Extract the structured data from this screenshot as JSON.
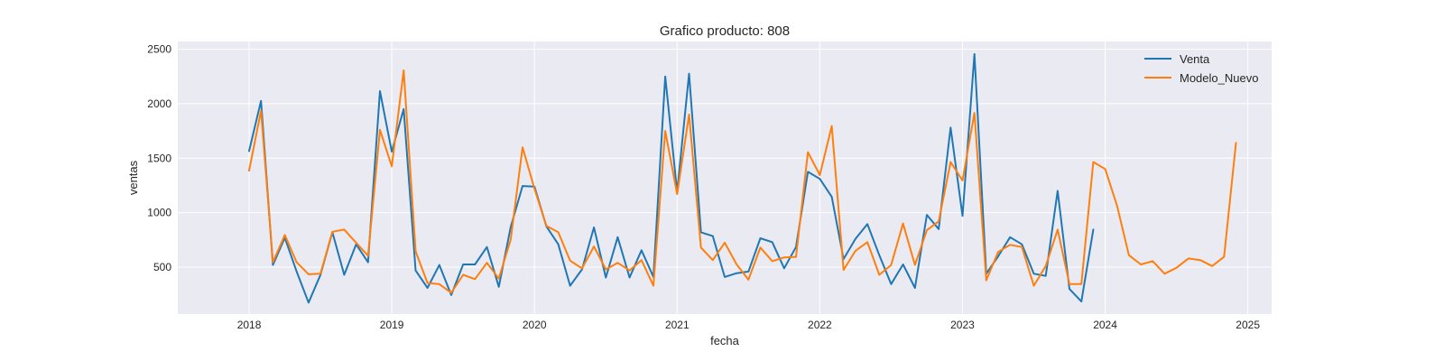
{
  "chart_data": {
    "type": "line",
    "title": "Grafico producto: 808",
    "xlabel": "fecha",
    "ylabel": "ventas",
    "xlim": [
      "2017-07-01",
      "2025-03-01"
    ],
    "ylim": [
      70,
      2570
    ],
    "x_ticks": [
      "2018",
      "2019",
      "2020",
      "2021",
      "2022",
      "2023",
      "2024",
      "2025"
    ],
    "y_ticks": [
      500,
      1000,
      1500,
      2000,
      2500
    ],
    "grid": true,
    "legend_position": "top-right",
    "start_month": "2018-01",
    "series": [
      {
        "name": "Venta",
        "color": "#1f77b4",
        "values": [
          1565,
          2025,
          520,
          770,
          460,
          175,
          430,
          820,
          430,
          710,
          545,
          2115,
          1560,
          1950,
          470,
          310,
          520,
          245,
          525,
          525,
          685,
          320,
          870,
          1245,
          1240,
          875,
          710,
          330,
          480,
          865,
          405,
          775,
          405,
          655,
          410,
          2250,
          1190,
          2275,
          820,
          785,
          410,
          445,
          460,
          765,
          730,
          490,
          685,
          1375,
          1310,
          1145,
          575,
          760,
          895,
          610,
          345,
          525,
          310,
          980,
          850,
          1780,
          970,
          2455,
          440,
          600,
          775,
          710,
          440,
          420,
          1200,
          300,
          185,
          845
        ]
      },
      {
        "name": "Modelo_Nuevo",
        "color": "#ff7f0e",
        "values": [
          1385,
          1935,
          545,
          795,
          545,
          435,
          440,
          825,
          845,
          725,
          605,
          1760,
          1425,
          2305,
          645,
          355,
          345,
          265,
          430,
          390,
          540,
          395,
          755,
          1600,
          1220,
          880,
          820,
          560,
          490,
          690,
          480,
          540,
          470,
          565,
          330,
          1750,
          1170,
          1900,
          680,
          565,
          725,
          525,
          385,
          680,
          555,
          590,
          595,
          1555,
          1345,
          1795,
          475,
          650,
          730,
          430,
          520,
          900,
          520,
          840,
          920,
          1465,
          1295,
          1915,
          380,
          640,
          705,
          685,
          330,
          510,
          845,
          345,
          345,
          1465,
          1400,
          1065,
          610,
          525,
          555,
          440,
          495,
          580,
          565,
          510,
          595,
          1640
        ]
      }
    ]
  }
}
